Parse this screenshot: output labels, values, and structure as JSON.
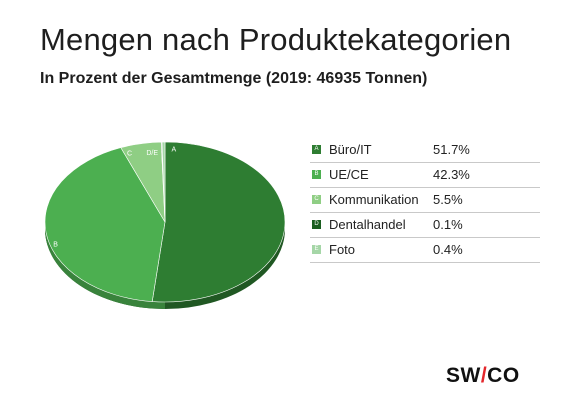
{
  "chart_data": {
    "type": "pie",
    "title": "Mengen nach Produktekategorien",
    "subtitle": "In Prozent der Gesamtmenge (2019: 46935 Tonnen)",
    "slices": [
      {
        "code": "A",
        "label": "Büro/IT",
        "value": 51.7,
        "value_text": "51.7%",
        "color": "#2e7d32"
      },
      {
        "code": "B",
        "label": "UE/CE",
        "value": 42.3,
        "value_text": "42.3%",
        "color": "#4caf50"
      },
      {
        "code": "C",
        "label": "Kommunikation",
        "value": 5.5,
        "value_text": "5.5%",
        "color": "#8fce84"
      },
      {
        "code": "D",
        "label": "Dentalhandel",
        "value": 0.1,
        "value_text": "0.1%",
        "color": "#1b5e20"
      },
      {
        "code": "E",
        "label": "Foto",
        "value": 0.4,
        "value_text": "0.4%",
        "color": "#a5d6a7"
      }
    ],
    "pie_labels": {
      "A": "A",
      "B": "B",
      "C": "C",
      "DE": "D/E"
    },
    "legend_position": "right"
  },
  "logo": {
    "left": "SW",
    "slash": "/",
    "right": "CO"
  }
}
